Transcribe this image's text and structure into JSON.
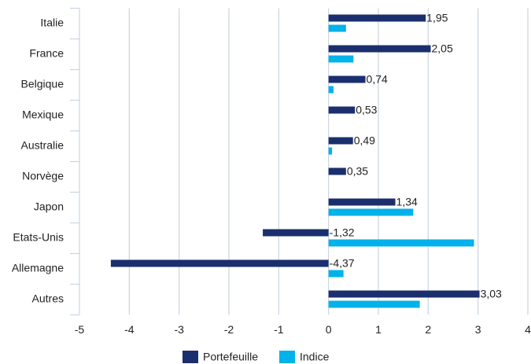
{
  "chart_data": {
    "type": "bar",
    "orientation": "horizontal",
    "categories": [
      "Italie",
      "France",
      "Belgique",
      "Mexique",
      "Australie",
      "Norvège",
      "Japon",
      "Etats-Unis",
      "Allemagne",
      "Autres"
    ],
    "series": [
      {
        "name": "Portefeuille",
        "color": "#1b2f6e",
        "values": [
          1.95,
          2.05,
          0.74,
          0.53,
          0.49,
          0.35,
          1.34,
          -1.32,
          -4.37,
          3.03
        ],
        "value_labels": [
          "1,95",
          "2,05",
          "0,74",
          "0,53",
          "0,49",
          "0,35",
          "1,34",
          "-1,32",
          "-4,37",
          "3,03"
        ]
      },
      {
        "name": "Indice",
        "color": "#00b2ea",
        "values": [
          0.35,
          0.5,
          0.1,
          0,
          0.07,
          0,
          1.7,
          2.92,
          0.3,
          1.83
        ]
      }
    ],
    "xlim": [
      -5,
      4
    ],
    "xticks": [
      -5,
      -4,
      -3,
      -2,
      -1,
      0,
      1,
      2,
      3,
      4
    ],
    "grid": true
  }
}
